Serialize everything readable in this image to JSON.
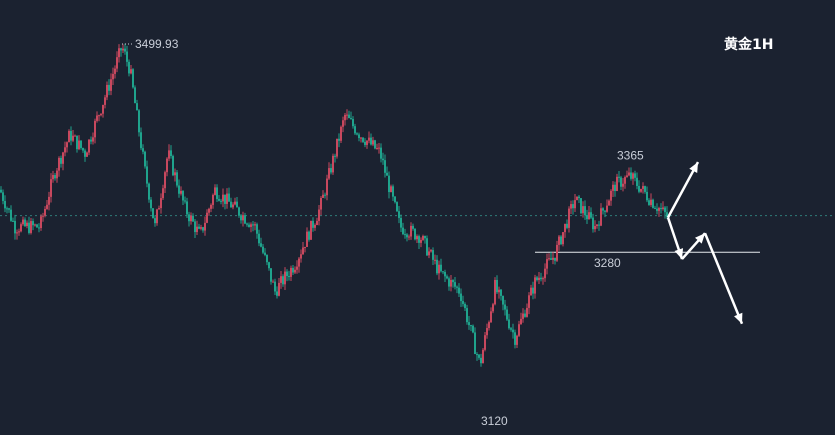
{
  "chart_data": {
    "type": "candlestick",
    "title": "黄金1H",
    "ylim": [
      3080,
      3540
    ],
    "colors": {
      "background": "#1b2230",
      "up": "#c8485e",
      "down": "#1fa38c",
      "arrow": "#ffffff",
      "reference": "#2f7d7a"
    },
    "grid": false,
    "annotations": {
      "high": {
        "label": "3499.93",
        "value": 3499.93
      },
      "level_upper": {
        "label": "3365",
        "value": 3365
      },
      "level_support": {
        "label": "3280",
        "value": 3280
      },
      "low": {
        "label": "3120",
        "value": 3120
      }
    },
    "reference_line_value": 3312,
    "anchors": [
      [
        0,
        3340
      ],
      [
        15,
        3300
      ],
      [
        40,
        3300
      ],
      [
        55,
        3360
      ],
      [
        70,
        3400
      ],
      [
        85,
        3380
      ],
      [
        98,
        3420
      ],
      [
        108,
        3450
      ],
      [
        122,
        3495
      ],
      [
        130,
        3470
      ],
      [
        145,
        3360
      ],
      [
        155,
        3300
      ],
      [
        168,
        3380
      ],
      [
        185,
        3320
      ],
      [
        200,
        3290
      ],
      [
        215,
        3340
      ],
      [
        235,
        3320
      ],
      [
        255,
        3300
      ],
      [
        275,
        3230
      ],
      [
        295,
        3260
      ],
      [
        320,
        3320
      ],
      [
        345,
        3420
      ],
      [
        360,
        3400
      ],
      [
        380,
        3380
      ],
      [
        400,
        3300
      ],
      [
        420,
        3290
      ],
      [
        440,
        3250
      ],
      [
        460,
        3230
      ],
      [
        480,
        3150
      ],
      [
        495,
        3235
      ],
      [
        515,
        3180
      ],
      [
        535,
        3240
      ],
      [
        555,
        3270
      ],
      [
        575,
        3330
      ],
      [
        595,
        3300
      ],
      [
        615,
        3345
      ],
      [
        630,
        3355
      ],
      [
        650,
        3330
      ],
      [
        668,
        3310
      ]
    ],
    "arrows": [
      {
        "from": [
          668,
          3310
        ],
        "to": [
          698,
          3370
        ]
      },
      {
        "from": [
          668,
          3310
        ],
        "to": [
          682,
          3265
        ]
      },
      {
        "from": [
          682,
          3265
        ],
        "to": [
          705,
          3293
        ]
      },
      {
        "from": [
          705,
          3293
        ],
        "to": [
          742,
          3195
        ]
      }
    ]
  }
}
